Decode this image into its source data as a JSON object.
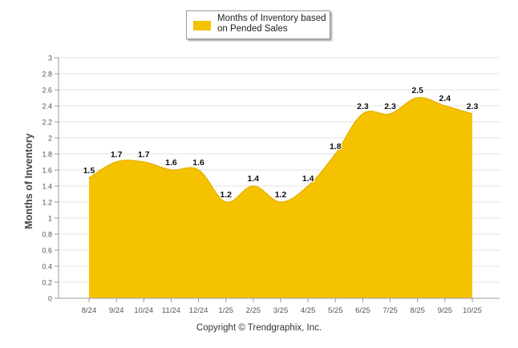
{
  "chart_data": {
    "type": "area",
    "categories": [
      "8/24",
      "9/24",
      "10/24",
      "11/24",
      "12/24",
      "1/25",
      "2/25",
      "3/25",
      "4/25",
      "5/25",
      "6/25",
      "7/25",
      "8/25",
      "9/25",
      "10/25"
    ],
    "series": [
      {
        "name": "Months of Inventory based on Pended Sales",
        "values": [
          1.5,
          1.7,
          1.7,
          1.6,
          1.6,
          1.2,
          1.4,
          1.2,
          1.4,
          1.8,
          2.3,
          2.3,
          2.5,
          2.4,
          2.3
        ],
        "labels": [
          "1.5",
          "1.7",
          "1.7",
          "1.6",
          "1.6",
          "1.2",
          "1.4",
          "1.2",
          "1.4",
          "1.8",
          "2.3",
          "2.3",
          "2.5",
          "2.4",
          "2.3"
        ]
      }
    ],
    "ylabel": "Months of Inventory",
    "xlabel": "",
    "ylim": [
      0,
      3
    ],
    "yticks": [
      "0",
      "0.2",
      "0.4",
      "0.6",
      "0.8",
      "1",
      "1.2",
      "1.4",
      "1.6",
      "1.8",
      "2",
      "2.2",
      "2.4",
      "2.6",
      "2.8",
      "3"
    ],
    "grid": true,
    "legend_position": "top-center",
    "color": "#F5C200"
  },
  "legend": {
    "label": "Months of Inventory based on Pended Sales"
  },
  "footer": {
    "copyright": "Copyright © Trendgraphix, Inc."
  }
}
